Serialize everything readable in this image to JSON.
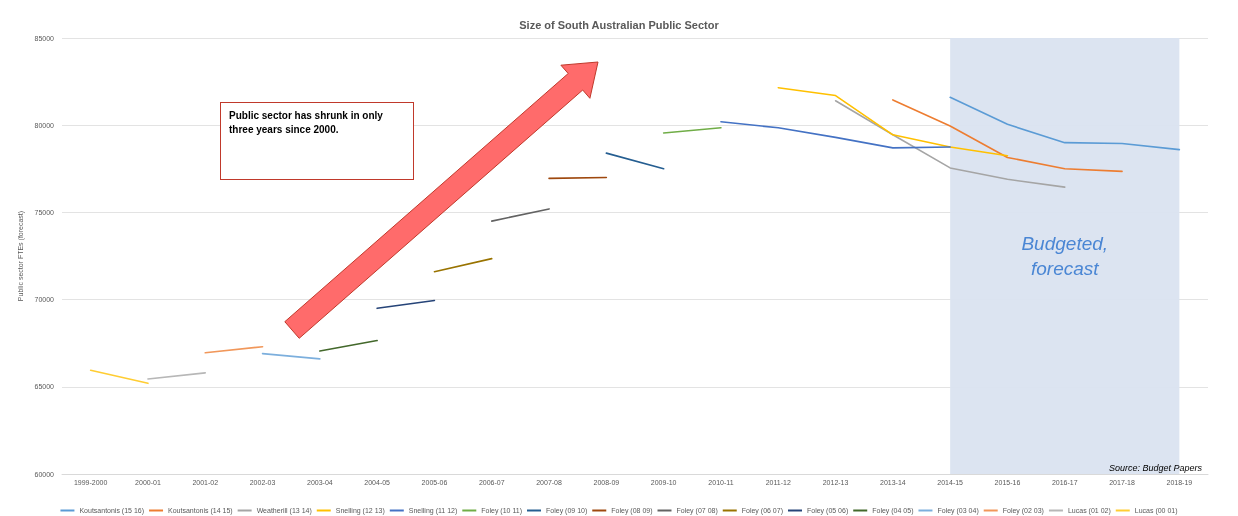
{
  "chart_data": {
    "type": "line",
    "title": "Size of South Australian Public Sector",
    "ylabel": "Public sector FTEs (forecast)",
    "categories": [
      "1999-2000",
      "2000-01",
      "2001-02",
      "2002-03",
      "2003-04",
      "2004-05",
      "2005-06",
      "2006-07",
      "2007-08",
      "2008-09",
      "2009-10",
      "2010-11",
      "2011-12",
      "2012-13",
      "2013-14",
      "2014-15",
      "2015-16",
      "2016-17",
      "2017-18",
      "2018-19"
    ],
    "series": [
      {
        "name": "Koutsantonis (15 16)",
        "color": "#5b9bd5",
        "values": [
          null,
          null,
          null,
          null,
          null,
          null,
          null,
          null,
          null,
          null,
          null,
          null,
          null,
          null,
          null,
          81600,
          80050,
          79000,
          78950,
          78600
        ]
      },
      {
        "name": "Koutsantonis (14 15)",
        "color": "#ed7d31",
        "values": [
          null,
          null,
          null,
          null,
          null,
          null,
          null,
          null,
          null,
          null,
          null,
          null,
          null,
          null,
          81450,
          79950,
          78150,
          77500,
          77350,
          null
        ]
      },
      {
        "name": "Weatherill (13 14)",
        "color": "#a5a5a5",
        "values": [
          null,
          null,
          null,
          null,
          null,
          null,
          null,
          null,
          null,
          null,
          null,
          null,
          null,
          81400,
          79450,
          77550,
          76900,
          76450,
          null,
          null
        ]
      },
      {
        "name": "Snelling (12 13)",
        "color": "#ffc000",
        "values": [
          null,
          null,
          null,
          null,
          null,
          null,
          null,
          null,
          null,
          null,
          null,
          null,
          82150,
          81700,
          79450,
          78750,
          78250,
          null,
          null,
          null
        ]
      },
      {
        "name": "Snelling (11 12)",
        "color": "#4472c4",
        "values": [
          null,
          null,
          null,
          null,
          null,
          null,
          null,
          null,
          null,
          null,
          null,
          80200,
          79850,
          79300,
          78700,
          78750,
          null,
          null,
          null,
          null
        ]
      },
      {
        "name": "Foley (10 11)",
        "color": "#70ad47",
        "values": [
          null,
          null,
          null,
          null,
          null,
          null,
          null,
          null,
          null,
          null,
          79550,
          79850,
          null,
          null,
          null,
          null,
          null,
          null,
          null,
          null
        ]
      },
      {
        "name": "Foley (09 10)",
        "color": "#255e91",
        "values": [
          null,
          null,
          null,
          null,
          null,
          null,
          null,
          null,
          null,
          78400,
          77500,
          null,
          null,
          null,
          null,
          null,
          null,
          null,
          null,
          null
        ]
      },
      {
        "name": "Foley (08 09)",
        "color": "#9e480e",
        "values": [
          null,
          null,
          null,
          null,
          null,
          null,
          null,
          null,
          76950,
          77000,
          null,
          null,
          null,
          null,
          null,
          null,
          null,
          null,
          null,
          null
        ]
      },
      {
        "name": "Foley (07 08)",
        "color": "#636363",
        "values": [
          null,
          null,
          null,
          null,
          null,
          null,
          null,
          74500,
          75200,
          null,
          null,
          null,
          null,
          null,
          null,
          null,
          null,
          null,
          null,
          null
        ]
      },
      {
        "name": "Foley (06 07)",
        "color": "#997300",
        "values": [
          null,
          null,
          null,
          null,
          null,
          null,
          71600,
          72350,
          null,
          null,
          null,
          null,
          null,
          null,
          null,
          null,
          null,
          null,
          null,
          null
        ]
      },
      {
        "name": "Foley (05 06)",
        "color": "#264478",
        "values": [
          null,
          null,
          null,
          null,
          null,
          69500,
          69950,
          null,
          null,
          null,
          null,
          null,
          null,
          null,
          null,
          null,
          null,
          null,
          null,
          null
        ]
      },
      {
        "name": "Foley (04 05)",
        "color": "#43682b",
        "values": [
          null,
          null,
          null,
          null,
          67050,
          67650,
          null,
          null,
          null,
          null,
          null,
          null,
          null,
          null,
          null,
          null,
          null,
          null,
          null,
          null
        ]
      },
      {
        "name": "Foley (03 04)",
        "color": "#7cafdd",
        "values": [
          null,
          null,
          null,
          66900,
          66600,
          null,
          null,
          null,
          null,
          null,
          null,
          null,
          null,
          null,
          null,
          null,
          null,
          null,
          null,
          null
        ]
      },
      {
        "name": "Foley (02 03)",
        "color": "#f1975a",
        "values": [
          null,
          null,
          66950,
          67300,
          null,
          null,
          null,
          null,
          null,
          null,
          null,
          null,
          null,
          null,
          null,
          null,
          null,
          null,
          null,
          null
        ]
      },
      {
        "name": "Lucas (01 02)",
        "color": "#b7b7b7",
        "values": [
          null,
          65450,
          65800,
          null,
          null,
          null,
          null,
          null,
          null,
          null,
          null,
          null,
          null,
          null,
          null,
          null,
          null,
          null,
          null,
          null
        ]
      },
      {
        "name": "Lucas (00 01)",
        "color": "#ffcd33",
        "values": [
          65950,
          65200,
          null,
          null,
          null,
          null,
          null,
          null,
          null,
          null,
          null,
          null,
          null,
          null,
          null,
          null,
          null,
          null,
          null,
          null
        ]
      }
    ],
    "ylim": [
      60000,
      85000
    ],
    "yticks": [
      60000,
      65000,
      70000,
      75000,
      80000,
      85000
    ],
    "bands": [
      {
        "axis": "x",
        "from": "2014-15",
        "to": "2018-19",
        "label": "Budgeted,\nforecast",
        "color": "#dae3f0"
      }
    ],
    "annotations": [
      "Public sector has shrunk in only three years since 2000.",
      "Source: Budget Papers"
    ],
    "grid": "y",
    "legend": "bottom",
    "marker": "none",
    "line_style": "solid"
  }
}
